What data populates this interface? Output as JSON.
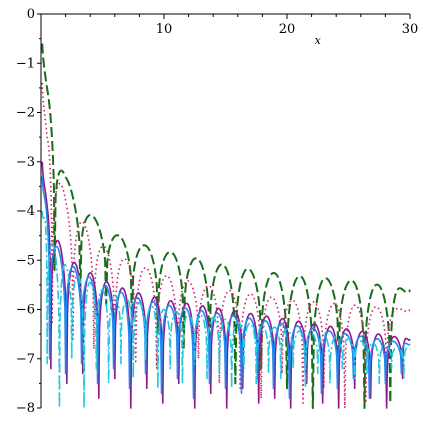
{
  "chart_data": {
    "type": "line",
    "title": "",
    "xlabel": "x",
    "ylabel": "",
    "xlim": [
      0,
      30
    ],
    "ylim": [
      -8,
      0
    ],
    "x_ticks": [
      10,
      20,
      30
    ],
    "y_ticks": [
      0,
      -1,
      -2,
      -3,
      -4,
      -5,
      -6,
      -7,
      -8
    ],
    "x_tick_labels": [
      "10",
      "20",
      "30"
    ],
    "y_tick_labels": [
      "0",
      "−1",
      "−2",
      "−3",
      "−4",
      "−5",
      "−6",
      "−7",
      "−8"
    ],
    "grid": false,
    "legend": "none",
    "series": [
      {
        "color": "#1a6b1a",
        "style": "long-dash",
        "envelope_x": [
          0.1,
          0.5,
          1,
          2,
          3,
          5,
          7,
          10,
          15,
          20,
          25,
          30
        ],
        "envelope_y": [
          -0.6,
          -1.5,
          -2.4,
          -3.3,
          -3.8,
          -4.3,
          -4.6,
          -4.8,
          -5.1,
          -5.3,
          -5.4,
          -5.6
        ],
        "dips_x": [
          1.1,
          3.2,
          5.3,
          7.4,
          9.5,
          11.6,
          13.7,
          15.8,
          17.9,
          20.0,
          22.1,
          24.2,
          26.3,
          28.4
        ],
        "dips_y": [
          -5.2,
          -5.6,
          -5.9,
          -6.3,
          -6.5,
          -6.8,
          -7.1,
          -7.5,
          -7.2,
          -7.6,
          -8.0,
          -7.3,
          -8.0,
          -7.9
        ]
      },
      {
        "color": "#cc2266",
        "style": "dotted",
        "envelope_x": [
          0.1,
          0.5,
          1,
          2,
          3,
          5,
          7,
          10,
          15,
          20,
          25,
          30
        ],
        "envelope_y": [
          -1.4,
          -2.5,
          -3.0,
          -3.7,
          -4.1,
          -4.7,
          -5.0,
          -5.3,
          -5.6,
          -5.8,
          -5.9,
          -6.0
        ],
        "dips_x": [
          0.9,
          2.6,
          4.3,
          6.0,
          7.7,
          9.4,
          11.1,
          12.8,
          14.5,
          16.2,
          17.9,
          19.6,
          21.3,
          23.0,
          24.7,
          26.4,
          28.1
        ],
        "dips_y": [
          -6.3,
          -6.6,
          -6.8,
          -7.0,
          -7.1,
          -7.2,
          -7.4,
          -7.0,
          -7.5,
          -7.6,
          -7.8,
          -7.3,
          -7.9,
          -7.6,
          -8.0,
          -7.9,
          -7.5
        ]
      },
      {
        "color": "#8b1a8b",
        "style": "solid",
        "envelope_x": [
          0.1,
          0.5,
          1,
          2,
          3,
          5,
          7,
          10,
          15,
          20,
          25,
          30
        ],
        "envelope_y": [
          -3.0,
          -3.9,
          -4.4,
          -4.9,
          -5.1,
          -5.4,
          -5.6,
          -5.8,
          -6.0,
          -6.2,
          -6.4,
          -6.6
        ],
        "dips_x": [
          0.8,
          2.1,
          3.4,
          4.7,
          6.0,
          7.3,
          8.6,
          9.9,
          11.2,
          12.5,
          13.8,
          15.1,
          16.4,
          17.7,
          19.0,
          20.3,
          21.6,
          22.9,
          24.2,
          25.5,
          26.8,
          28.1,
          29.4
        ],
        "dips_y": [
          -7.2,
          -7.5,
          -7.3,
          -7.8,
          -7.4,
          -8.0,
          -7.6,
          -7.9,
          -7.5,
          -8.0,
          -7.7,
          -8.0,
          -7.6,
          -7.9,
          -7.8,
          -8.0,
          -7.5,
          -7.9,
          -8.0,
          -7.6,
          -7.8,
          -8.0,
          -7.4
        ]
      },
      {
        "color": "#2288ee",
        "style": "solid",
        "envelope_x": [
          0.1,
          0.5,
          1,
          2,
          3,
          5,
          7,
          10,
          15,
          20,
          25,
          30
        ],
        "envelope_y": [
          -3.3,
          -4.1,
          -4.6,
          -5.0,
          -5.2,
          -5.5,
          -5.7,
          -5.9,
          -6.1,
          -6.3,
          -6.5,
          -6.7
        ],
        "dips_x": [
          0.7,
          2.0,
          3.3,
          4.6,
          5.9,
          7.2,
          8.5,
          9.8,
          11.1,
          12.4,
          13.7,
          15.0,
          16.3,
          17.6,
          18.9,
          20.2,
          21.5,
          22.8,
          24.1,
          25.4,
          26.7,
          28.0,
          29.3
        ],
        "dips_y": [
          -7.0,
          -7.3,
          -7.1,
          -7.5,
          -7.2,
          -7.6,
          -7.3,
          -7.7,
          -7.4,
          -7.8,
          -7.5,
          -7.6,
          -7.7,
          -7.4,
          -7.6,
          -7.8,
          -7.3,
          -7.7,
          -7.6,
          -7.4,
          -7.8,
          -7.5,
          -7.3
        ]
      },
      {
        "color": "#22c8dd",
        "style": "dash-dot",
        "envelope_x": [
          0.1,
          0.5,
          1,
          2,
          3,
          5,
          7,
          10,
          15,
          20,
          25,
          30
        ],
        "envelope_y": [
          -4.0,
          -4.3,
          -4.7,
          -5.1,
          -5.3,
          -5.6,
          -5.8,
          -6.0,
          -6.2,
          -6.4,
          -6.6,
          -6.8
        ],
        "dips_x": [
          0.5,
          1.5,
          2.5,
          3.5,
          4.5,
          5.5,
          6.5,
          7.5,
          8.5,
          9.5,
          10.5,
          11.5,
          12.5,
          13.5,
          14.5,
          15.5,
          16.5,
          17.5,
          18.5,
          19.5,
          20.5,
          21.5,
          22.5,
          23.5,
          24.5,
          25.5,
          26.5,
          27.5,
          28.5,
          29.5
        ],
        "dips_y": [
          -7.1,
          -8.0,
          -7.0,
          -8.0,
          -7.2,
          -7.5,
          -7.1,
          -7.4,
          -7.0,
          -7.6,
          -7.2,
          -7.5,
          -7.1,
          -7.4,
          -7.3,
          -7.6,
          -7.2,
          -7.5,
          -7.3,
          -7.4,
          -7.2,
          -7.6,
          -7.3,
          -7.5,
          -7.2,
          -7.4,
          -7.3,
          -7.5,
          -7.2,
          -7.4
        ]
      }
    ]
  }
}
